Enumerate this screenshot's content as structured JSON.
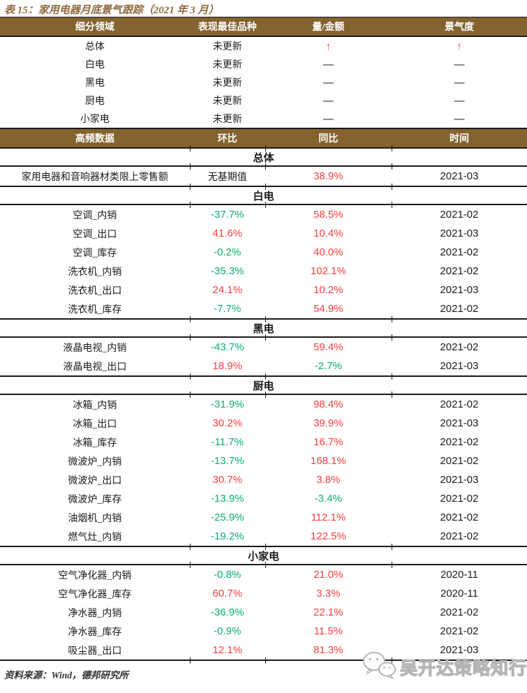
{
  "colors": {
    "header_bg": "#84632F",
    "title_text": "#8F6B3E",
    "red": "#F83E3E",
    "green": "#0CAD6C",
    "text": "#1A1A1A",
    "watermark": "#B5B5B5"
  },
  "title": "表 15：家用电器月底景气跟踪（2021 年 3 月）",
  "summary_table": {
    "headers": [
      "细分领域",
      "表现最佳品种",
      "量/金额",
      "景气度"
    ],
    "rows": [
      {
        "segment": "总体",
        "best_variety": "未更新",
        "volume": "↑",
        "volume_color": "red",
        "sentiment": "↑",
        "sentiment_color": "red"
      },
      {
        "segment": "白电",
        "best_variety": "未更新",
        "volume": "—",
        "volume_color": "text",
        "sentiment": "—",
        "sentiment_color": "text"
      },
      {
        "segment": "黑电",
        "best_variety": "未更新",
        "volume": "—",
        "volume_color": "text",
        "sentiment": "—",
        "sentiment_color": "text"
      },
      {
        "segment": "厨电",
        "best_variety": "未更新",
        "volume": "—",
        "volume_color": "text",
        "sentiment": "—",
        "sentiment_color": "text"
      },
      {
        "segment": "小家电",
        "best_variety": "未更新",
        "volume": "—",
        "volume_color": "text",
        "sentiment": "—",
        "sentiment_color": "text"
      }
    ]
  },
  "detail_table": {
    "headers": [
      "高频数据",
      "环比",
      "同比",
      "时间"
    ],
    "sections": [
      {
        "name": "总体",
        "rows": [
          {
            "indicator": "家用电器和音响器材类限上零售额",
            "mom": "无基期值",
            "mom_color": "text",
            "yoy": "38.9%",
            "yoy_color": "red",
            "date": "2021-03"
          }
        ]
      },
      {
        "name": "白电",
        "rows": [
          {
            "indicator": "空调_内销",
            "mom": "-37.7%",
            "mom_color": "green",
            "yoy": "58.5%",
            "yoy_color": "red",
            "date": "2021-02"
          },
          {
            "indicator": "空调_出口",
            "mom": "41.6%",
            "mom_color": "red",
            "yoy": "10.4%",
            "yoy_color": "red",
            "date": "2021-03"
          },
          {
            "indicator": "空调_库存",
            "mom": "-0.2%",
            "mom_color": "green",
            "yoy": "40.0%",
            "yoy_color": "red",
            "date": "2021-02"
          },
          {
            "indicator": "洗衣机_内销",
            "mom": "-35.3%",
            "mom_color": "green",
            "yoy": "102.1%",
            "yoy_color": "red",
            "date": "2021-02"
          },
          {
            "indicator": "洗衣机_出口",
            "mom": "24.1%",
            "mom_color": "red",
            "yoy": "10.2%",
            "yoy_color": "red",
            "date": "2021-03"
          },
          {
            "indicator": "洗衣机_库存",
            "mom": "-7.7%",
            "mom_color": "green",
            "yoy": "54.9%",
            "yoy_color": "red",
            "date": "2021-02"
          }
        ]
      },
      {
        "name": "黑电",
        "rows": [
          {
            "indicator": "液晶电视_内销",
            "mom": "-43.7%",
            "mom_color": "green",
            "yoy": "59.4%",
            "yoy_color": "red",
            "date": "2021-02"
          },
          {
            "indicator": "液晶电视_出口",
            "mom": "18.9%",
            "mom_color": "red",
            "yoy": "-2.7%",
            "yoy_color": "green",
            "date": "2021-03"
          }
        ]
      },
      {
        "name": "厨电",
        "rows": [
          {
            "indicator": "冰箱_内销",
            "mom": "-31.9%",
            "mom_color": "green",
            "yoy": "98.4%",
            "yoy_color": "red",
            "date": "2021-02"
          },
          {
            "indicator": "冰箱_出口",
            "mom": "30.2%",
            "mom_color": "red",
            "yoy": "39.9%",
            "yoy_color": "red",
            "date": "2021-03"
          },
          {
            "indicator": "冰箱_库存",
            "mom": "-11.7%",
            "mom_color": "green",
            "yoy": "16.7%",
            "yoy_color": "red",
            "date": "2021-02"
          },
          {
            "indicator": "微波炉_内销",
            "mom": "-13.7%",
            "mom_color": "green",
            "yoy": "168.1%",
            "yoy_color": "red",
            "date": "2021-02"
          },
          {
            "indicator": "微波炉_出口",
            "mom": "30.7%",
            "mom_color": "red",
            "yoy": "3.8%",
            "yoy_color": "red",
            "date": "2021-03"
          },
          {
            "indicator": "微波炉_库存",
            "mom": "-13.9%",
            "mom_color": "green",
            "yoy": "-3.4%",
            "yoy_color": "green",
            "date": "2021-02"
          },
          {
            "indicator": "油烟机_内销",
            "mom": "-25.9%",
            "mom_color": "green",
            "yoy": "112.1%",
            "yoy_color": "red",
            "date": "2021-02"
          },
          {
            "indicator": "燃气灶_内销",
            "mom": "-19.2%",
            "mom_color": "green",
            "yoy": "122.5%",
            "yoy_color": "red",
            "date": "2021-02"
          }
        ]
      },
      {
        "name": "小家电",
        "rows": [
          {
            "indicator": "空气净化器_内销",
            "mom": "-0.8%",
            "mom_color": "green",
            "yoy": "21.0%",
            "yoy_color": "red",
            "date": "2020-11"
          },
          {
            "indicator": "空气净化器_库存",
            "mom": "60.7%",
            "mom_color": "red",
            "yoy": "3.3%",
            "yoy_color": "red",
            "date": "2020-11"
          },
          {
            "indicator": "净水器_内销",
            "mom": "-36.9%",
            "mom_color": "green",
            "yoy": "22.1%",
            "yoy_color": "red",
            "date": "2021-02"
          },
          {
            "indicator": "净水器_库存",
            "mom": "-0.9%",
            "mom_color": "green",
            "yoy": "11.5%",
            "yoy_color": "red",
            "date": "2021-02"
          },
          {
            "indicator": "吸尘器_出口",
            "mom": "12.1%",
            "mom_color": "red",
            "yoy": "81.3%",
            "yoy_color": "red",
            "date": "2021-03"
          }
        ]
      }
    ]
  },
  "footer": {
    "source": "资料来源：Wind，德邦研究所"
  },
  "watermark": {
    "label": "吴开达策略知行",
    "icon": "wechat-icon"
  }
}
